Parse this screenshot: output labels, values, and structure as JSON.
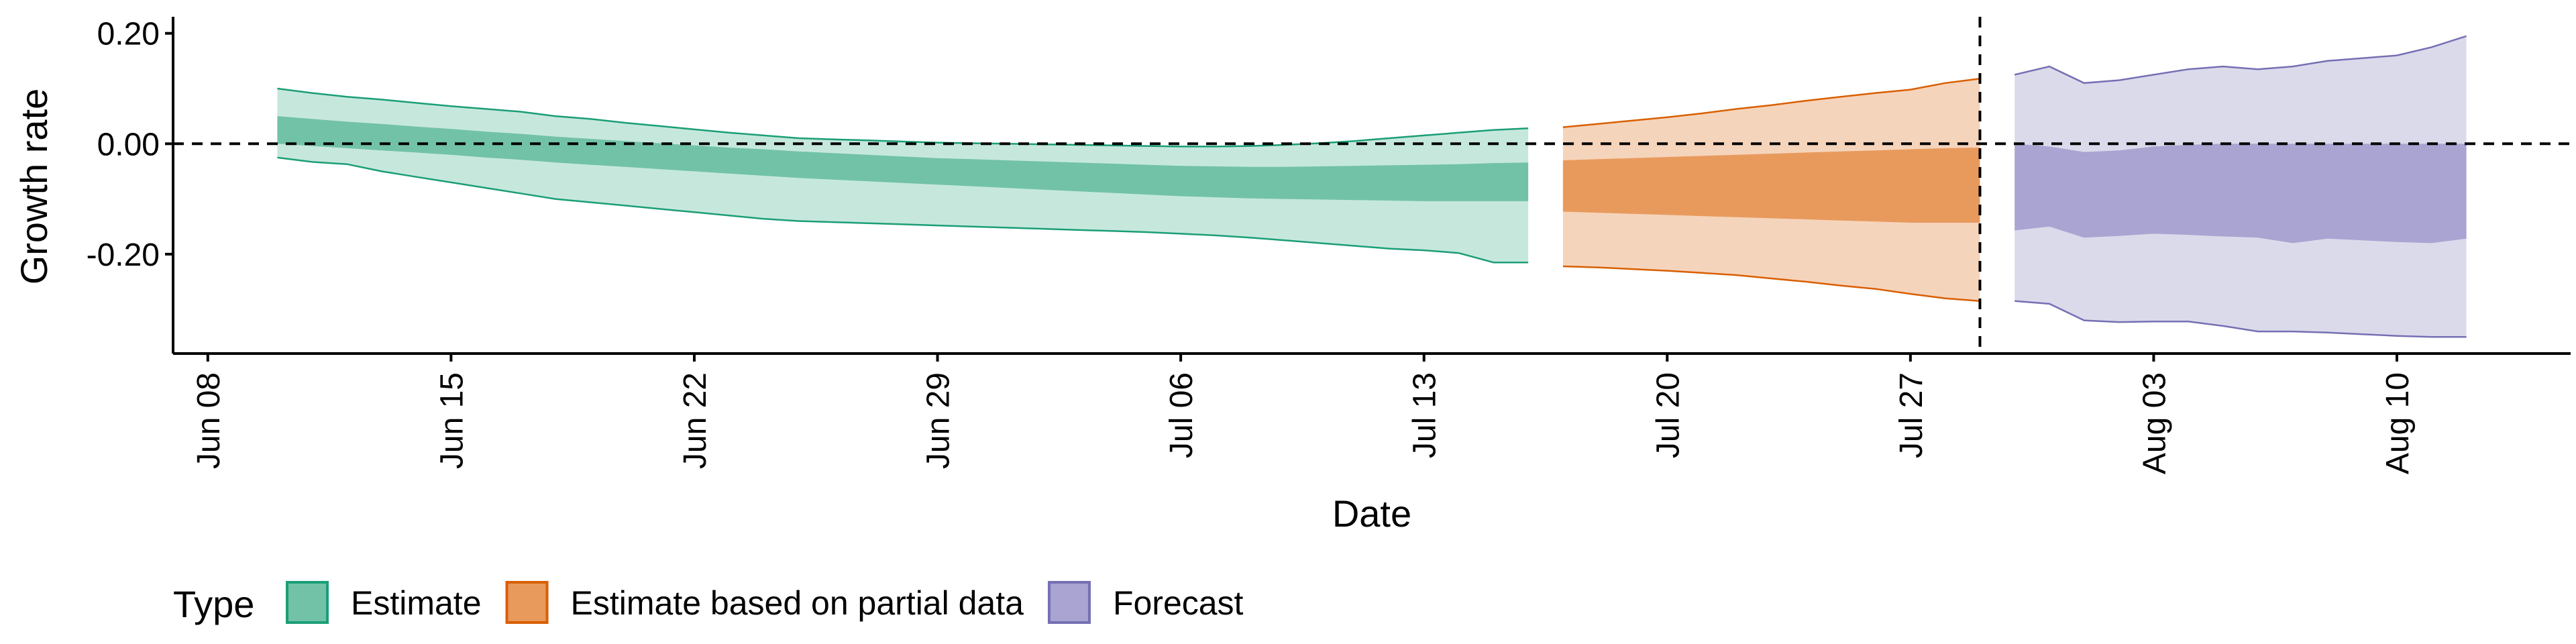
{
  "chart_data": {
    "type": "area",
    "xlabel": "Date",
    "ylabel": "Growth rate",
    "x_ticks": [
      {
        "date": "2020-06-08",
        "label": "Jun 08"
      },
      {
        "date": "2020-06-15",
        "label": "Jun 15"
      },
      {
        "date": "2020-06-22",
        "label": "Jun 22"
      },
      {
        "date": "2020-06-29",
        "label": "Jun 29"
      },
      {
        "date": "2020-07-06",
        "label": "Jul 06"
      },
      {
        "date": "2020-07-13",
        "label": "Jul 13"
      },
      {
        "date": "2020-07-20",
        "label": "Jul 20"
      },
      {
        "date": "2020-07-27",
        "label": "Jul 27"
      },
      {
        "date": "2020-08-03",
        "label": "Aug 03"
      },
      {
        "date": "2020-08-10",
        "label": "Aug 10"
      }
    ],
    "y_ticks": [
      {
        "value": 0.2,
        "label": "0.20"
      },
      {
        "value": 0.0,
        "label": "0.00"
      },
      {
        "value": -0.2,
        "label": "-0.20"
      }
    ],
    "xlim": [
      "2020-06-07",
      "2020-08-15"
    ],
    "ylim": [
      -0.38,
      0.23
    ],
    "reference_lines": [
      {
        "orientation": "horizontal",
        "value": 0.0,
        "style": "dashed"
      },
      {
        "orientation": "vertical",
        "value": "2020-07-29",
        "style": "dashed"
      }
    ],
    "grid": false,
    "legend": {
      "title": "Type",
      "position": "bottom",
      "entries": [
        {
          "label": "Estimate",
          "fill": "#72c2a8",
          "stroke": "#1b9e77"
        },
        {
          "label": "Estimate based on partial data",
          "fill": "#e89a5d",
          "stroke": "#d95f02"
        },
        {
          "label": "Forecast",
          "fill": "#a9a4d1",
          "stroke": "#7570b3"
        }
      ]
    },
    "series": [
      {
        "name": "Estimate",
        "outer_fill": "#c6e8dc",
        "inner_fill": "#72c2a8",
        "line_color": "#1b9e77",
        "points": [
          {
            "date": "2020-06-10",
            "outer_lo": -0.025,
            "inner_lo": 0.0,
            "inner_hi": 0.05,
            "outer_hi": 0.1
          },
          {
            "date": "2020-06-11",
            "outer_lo": -0.033,
            "inner_lo": -0.004,
            "inner_hi": 0.045,
            "outer_hi": 0.092
          },
          {
            "date": "2020-06-12",
            "outer_lo": -0.037,
            "inner_lo": -0.008,
            "inner_hi": 0.04,
            "outer_hi": 0.085
          },
          {
            "date": "2020-06-13",
            "outer_lo": -0.05,
            "inner_lo": -0.012,
            "inner_hi": 0.036,
            "outer_hi": 0.08
          },
          {
            "date": "2020-06-14",
            "outer_lo": -0.06,
            "inner_lo": -0.016,
            "inner_hi": 0.031,
            "outer_hi": 0.074
          },
          {
            "date": "2020-06-15",
            "outer_lo": -0.07,
            "inner_lo": -0.02,
            "inner_hi": 0.027,
            "outer_hi": 0.068
          },
          {
            "date": "2020-06-16",
            "outer_lo": -0.08,
            "inner_lo": -0.025,
            "inner_hi": 0.022,
            "outer_hi": 0.063
          },
          {
            "date": "2020-06-17",
            "outer_lo": -0.09,
            "inner_lo": -0.029,
            "inner_hi": 0.018,
            "outer_hi": 0.058
          },
          {
            "date": "2020-06-18",
            "outer_lo": -0.1,
            "inner_lo": -0.034,
            "inner_hi": 0.013,
            "outer_hi": 0.05
          },
          {
            "date": "2020-06-19",
            "outer_lo": -0.106,
            "inner_lo": -0.038,
            "inner_hi": 0.009,
            "outer_hi": 0.045
          },
          {
            "date": "2020-06-20",
            "outer_lo": -0.112,
            "inner_lo": -0.042,
            "inner_hi": 0.005,
            "outer_hi": 0.038
          },
          {
            "date": "2020-06-21",
            "outer_lo": -0.118,
            "inner_lo": -0.046,
            "inner_hi": 0.001,
            "outer_hi": 0.032
          },
          {
            "date": "2020-06-22",
            "outer_lo": -0.124,
            "inner_lo": -0.05,
            "inner_hi": -0.003,
            "outer_hi": 0.026
          },
          {
            "date": "2020-06-23",
            "outer_lo": -0.13,
            "inner_lo": -0.054,
            "inner_hi": -0.007,
            "outer_hi": 0.02
          },
          {
            "date": "2020-06-24",
            "outer_lo": -0.136,
            "inner_lo": -0.058,
            "inner_hi": -0.01,
            "outer_hi": 0.015
          },
          {
            "date": "2020-06-25",
            "outer_lo": -0.14,
            "inner_lo": -0.062,
            "inner_hi": -0.014,
            "outer_hi": 0.01
          },
          {
            "date": "2020-06-26",
            "outer_lo": -0.142,
            "inner_lo": -0.065,
            "inner_hi": -0.017,
            "outer_hi": 0.008
          },
          {
            "date": "2020-06-27",
            "outer_lo": -0.144,
            "inner_lo": -0.068,
            "inner_hi": -0.02,
            "outer_hi": 0.006
          },
          {
            "date": "2020-06-28",
            "outer_lo": -0.146,
            "inner_lo": -0.071,
            "inner_hi": -0.023,
            "outer_hi": 0.004
          },
          {
            "date": "2020-06-29",
            "outer_lo": -0.148,
            "inner_lo": -0.074,
            "inner_hi": -0.026,
            "outer_hi": 0.002
          },
          {
            "date": "2020-06-30",
            "outer_lo": -0.15,
            "inner_lo": -0.077,
            "inner_hi": -0.028,
            "outer_hi": 0.001
          },
          {
            "date": "2020-07-01",
            "outer_lo": -0.152,
            "inner_lo": -0.08,
            "inner_hi": -0.03,
            "outer_hi": 0.0
          },
          {
            "date": "2020-07-02",
            "outer_lo": -0.154,
            "inner_lo": -0.083,
            "inner_hi": -0.032,
            "outer_hi": -0.001
          },
          {
            "date": "2020-07-03",
            "outer_lo": -0.156,
            "inner_lo": -0.086,
            "inner_hi": -0.034,
            "outer_hi": -0.002
          },
          {
            "date": "2020-07-04",
            "outer_lo": -0.158,
            "inner_lo": -0.089,
            "inner_hi": -0.036,
            "outer_hi": -0.003
          },
          {
            "date": "2020-07-05",
            "outer_lo": -0.16,
            "inner_lo": -0.092,
            "inner_hi": -0.038,
            "outer_hi": -0.004
          },
          {
            "date": "2020-07-06",
            "outer_lo": -0.163,
            "inner_lo": -0.095,
            "inner_hi": -0.04,
            "outer_hi": -0.005
          },
          {
            "date": "2020-07-07",
            "outer_lo": -0.166,
            "inner_lo": -0.097,
            "inner_hi": -0.041,
            "outer_hi": -0.005
          },
          {
            "date": "2020-07-08",
            "outer_lo": -0.17,
            "inner_lo": -0.099,
            "inner_hi": -0.042,
            "outer_hi": -0.004
          },
          {
            "date": "2020-07-09",
            "outer_lo": -0.175,
            "inner_lo": -0.1,
            "inner_hi": -0.042,
            "outer_hi": -0.002
          },
          {
            "date": "2020-07-10",
            "outer_lo": -0.18,
            "inner_lo": -0.101,
            "inner_hi": -0.041,
            "outer_hi": 0.001
          },
          {
            "date": "2020-07-11",
            "outer_lo": -0.185,
            "inner_lo": -0.102,
            "inner_hi": -0.04,
            "outer_hi": 0.005
          },
          {
            "date": "2020-07-12",
            "outer_lo": -0.19,
            "inner_lo": -0.103,
            "inner_hi": -0.039,
            "outer_hi": 0.01
          },
          {
            "date": "2020-07-13",
            "outer_lo": -0.193,
            "inner_lo": -0.104,
            "inner_hi": -0.038,
            "outer_hi": 0.015
          },
          {
            "date": "2020-07-14",
            "outer_lo": -0.198,
            "inner_lo": -0.104,
            "inner_hi": -0.037,
            "outer_hi": 0.02
          },
          {
            "date": "2020-07-15",
            "outer_lo": -0.215,
            "inner_lo": -0.104,
            "inner_hi": -0.035,
            "outer_hi": 0.025
          },
          {
            "date": "2020-07-16",
            "outer_lo": -0.215,
            "inner_lo": -0.104,
            "inner_hi": -0.034,
            "outer_hi": 0.028
          }
        ]
      },
      {
        "name": "Estimate based on partial data",
        "outer_fill": "#f5d4bc",
        "inner_fill": "#e89a5d",
        "line_color": "#d95f02",
        "points": [
          {
            "date": "2020-07-17",
            "outer_lo": -0.222,
            "inner_lo": -0.123,
            "inner_hi": -0.03,
            "outer_hi": 0.03
          },
          {
            "date": "2020-07-18",
            "outer_lo": -0.224,
            "inner_lo": -0.125,
            "inner_hi": -0.028,
            "outer_hi": 0.036
          },
          {
            "date": "2020-07-19",
            "outer_lo": -0.227,
            "inner_lo": -0.127,
            "inner_hi": -0.026,
            "outer_hi": 0.042
          },
          {
            "date": "2020-07-20",
            "outer_lo": -0.23,
            "inner_lo": -0.129,
            "inner_hi": -0.024,
            "outer_hi": 0.048
          },
          {
            "date": "2020-07-21",
            "outer_lo": -0.234,
            "inner_lo": -0.131,
            "inner_hi": -0.022,
            "outer_hi": 0.055
          },
          {
            "date": "2020-07-22",
            "outer_lo": -0.238,
            "inner_lo": -0.133,
            "inner_hi": -0.02,
            "outer_hi": 0.063
          },
          {
            "date": "2020-07-23",
            "outer_lo": -0.244,
            "inner_lo": -0.135,
            "inner_hi": -0.018,
            "outer_hi": 0.07
          },
          {
            "date": "2020-07-24",
            "outer_lo": -0.25,
            "inner_lo": -0.137,
            "inner_hi": -0.016,
            "outer_hi": 0.078
          },
          {
            "date": "2020-07-25",
            "outer_lo": -0.257,
            "inner_lo": -0.139,
            "inner_hi": -0.014,
            "outer_hi": 0.085
          },
          {
            "date": "2020-07-26",
            "outer_lo": -0.263,
            "inner_lo": -0.141,
            "inner_hi": -0.012,
            "outer_hi": 0.092
          },
          {
            "date": "2020-07-27",
            "outer_lo": -0.272,
            "inner_lo": -0.143,
            "inner_hi": -0.01,
            "outer_hi": 0.098
          },
          {
            "date": "2020-07-28",
            "outer_lo": -0.28,
            "inner_lo": -0.143,
            "inner_hi": -0.008,
            "outer_hi": 0.11
          },
          {
            "date": "2020-07-29",
            "outer_lo": -0.285,
            "inner_lo": -0.143,
            "inner_hi": -0.007,
            "outer_hi": 0.118
          }
        ]
      },
      {
        "name": "Forecast",
        "outer_fill": "#dbdaeb",
        "inner_fill": "#a9a4d1",
        "line_color": "#7570b3",
        "points": [
          {
            "date": "2020-07-30",
            "outer_lo": -0.285,
            "inner_lo": -0.157,
            "inner_hi": 0.0,
            "outer_hi": 0.125
          },
          {
            "date": "2020-07-31",
            "outer_lo": -0.29,
            "inner_lo": -0.15,
            "inner_hi": -0.005,
            "outer_hi": 0.14
          },
          {
            "date": "2020-08-01",
            "outer_lo": -0.32,
            "inner_lo": -0.17,
            "inner_hi": -0.015,
            "outer_hi": 0.11
          },
          {
            "date": "2020-08-02",
            "outer_lo": -0.323,
            "inner_lo": -0.167,
            "inner_hi": -0.012,
            "outer_hi": 0.115
          },
          {
            "date": "2020-08-03",
            "outer_lo": -0.322,
            "inner_lo": -0.163,
            "inner_hi": -0.005,
            "outer_hi": 0.125
          },
          {
            "date": "2020-08-04",
            "outer_lo": -0.322,
            "inner_lo": -0.165,
            "inner_hi": -0.002,
            "outer_hi": 0.135
          },
          {
            "date": "2020-08-05",
            "outer_lo": -0.33,
            "inner_lo": -0.168,
            "inner_hi": 0.0,
            "outer_hi": 0.14
          },
          {
            "date": "2020-08-06",
            "outer_lo": -0.34,
            "inner_lo": -0.17,
            "inner_hi": 0.0,
            "outer_hi": 0.135
          },
          {
            "date": "2020-08-07",
            "outer_lo": -0.34,
            "inner_lo": -0.18,
            "inner_hi": 0.0,
            "outer_hi": 0.14
          },
          {
            "date": "2020-08-08",
            "outer_lo": -0.342,
            "inner_lo": -0.172,
            "inner_hi": 0.0,
            "outer_hi": 0.15
          },
          {
            "date": "2020-08-09",
            "outer_lo": -0.345,
            "inner_lo": -0.175,
            "inner_hi": 0.0,
            "outer_hi": 0.155
          },
          {
            "date": "2020-08-10",
            "outer_lo": -0.348,
            "inner_lo": -0.178,
            "inner_hi": 0.0,
            "outer_hi": 0.16
          },
          {
            "date": "2020-08-11",
            "outer_lo": -0.35,
            "inner_lo": -0.18,
            "inner_hi": 0.0,
            "outer_hi": 0.175
          },
          {
            "date": "2020-08-12",
            "outer_lo": -0.35,
            "inner_lo": -0.172,
            "inner_hi": 0.0,
            "outer_hi": 0.195
          }
        ]
      }
    ]
  }
}
